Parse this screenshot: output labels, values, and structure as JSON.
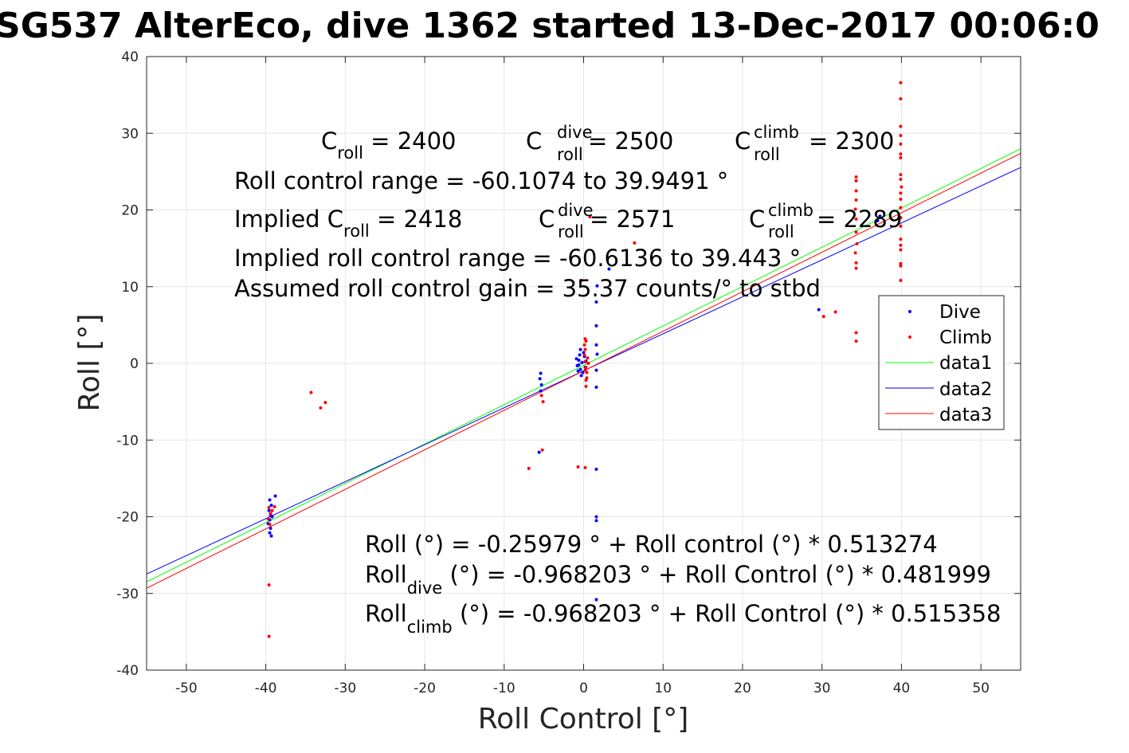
{
  "chart_data": {
    "type": "scatter",
    "title": "SG537 AlterEco, dive 1362 started 13-Dec-2017 00:06:0",
    "xlabel": "Roll Control [°]",
    "ylabel": "Roll [°]",
    "xlim": [
      -55,
      55
    ],
    "ylim": [
      -40,
      40
    ],
    "xticks": [
      -50,
      -40,
      -30,
      -20,
      -10,
      0,
      10,
      20,
      30,
      40,
      50
    ],
    "yticks": [
      -40,
      -30,
      -20,
      -10,
      0,
      10,
      20,
      30,
      40
    ],
    "xtick_labels": [
      "-50",
      "-40",
      "-30",
      "-20",
      "-10",
      "0",
      "10",
      "20",
      "30",
      "40",
      "50"
    ],
    "ytick_labels": [
      "-40",
      "-30",
      "-20",
      "-10",
      "0",
      "10",
      "20",
      "30",
      "40"
    ],
    "grid": true,
    "legend_position": "right",
    "series": [
      {
        "name": "Dive",
        "kind": "points",
        "color": "#0000ff",
        "points": [
          [
            -39.5,
            -17.8
          ],
          [
            -39.3,
            -18.5
          ],
          [
            -39.6,
            -19.2
          ],
          [
            -39.4,
            -19.8
          ],
          [
            -39.5,
            -20.4
          ],
          [
            -39.7,
            -20.9
          ],
          [
            -39.4,
            -21.5
          ],
          [
            -39.5,
            -22.1
          ],
          [
            -39.3,
            -22.5
          ],
          [
            -38.8,
            -17.3
          ],
          [
            -39.2,
            -20.0
          ],
          [
            -5.4,
            -1.3
          ],
          [
            -5.5,
            -2.0
          ],
          [
            -5.3,
            -2.8
          ],
          [
            -5.4,
            -3.6
          ],
          [
            -5.6,
            -11.6
          ],
          [
            -0.8,
            -0.3
          ],
          [
            -0.6,
            0.4
          ],
          [
            -0.5,
            1.1
          ],
          [
            -0.4,
            1.8
          ],
          [
            -0.7,
            -1.0
          ],
          [
            -0.3,
            -1.6
          ],
          [
            -0.2,
            0.1
          ],
          [
            0.1,
            0.9
          ],
          [
            0.2,
            -0.5
          ],
          [
            -0.9,
            0.6
          ],
          [
            -0.1,
            -1.2
          ],
          [
            0.3,
            0.3
          ],
          [
            -0.4,
            -0.8
          ],
          [
            0.0,
            1.4
          ],
          [
            -0.6,
            -0.2
          ],
          [
            1.6,
            4.9
          ],
          [
            1.6,
            2.4
          ],
          [
            1.7,
            1.2
          ],
          [
            1.6,
            -0.9
          ],
          [
            1.6,
            -3.1
          ],
          [
            1.6,
            8.0
          ],
          [
            1.7,
            10.1
          ],
          [
            1.6,
            -13.8
          ],
          [
            1.6,
            -20.0
          ],
          [
            1.6,
            -20.5
          ],
          [
            1.6,
            -30.8
          ],
          [
            3.2,
            12.3
          ],
          [
            29.6,
            7.0
          ],
          [
            37.3,
            19.2
          ],
          [
            37.0,
            18.6
          ]
        ]
      },
      {
        "name": "Climb",
        "kind": "points",
        "color": "#ff0000",
        "points": [
          [
            -39.6,
            -18.8
          ],
          [
            -39.4,
            -19.6
          ],
          [
            -39.7,
            -20.3
          ],
          [
            -39.2,
            -19.2
          ],
          [
            -38.9,
            -18.7
          ],
          [
            -39.5,
            -21.0
          ],
          [
            -39.6,
            -28.9
          ],
          [
            -39.6,
            -35.6
          ],
          [
            -34.3,
            -3.8
          ],
          [
            -33.1,
            -5.8
          ],
          [
            -32.5,
            -5.1
          ],
          [
            -6.9,
            -13.7
          ],
          [
            -5.3,
            -4.2
          ],
          [
            -5.1,
            -5.0
          ],
          [
            -5.2,
            -11.3
          ],
          [
            -0.7,
            -13.5
          ],
          [
            0.2,
            -13.6
          ],
          [
            -0.3,
            10.8
          ],
          [
            0.2,
            0.2
          ],
          [
            0.3,
            -0.5
          ],
          [
            0.1,
            1.1
          ],
          [
            0.4,
            -1.2
          ],
          [
            0.2,
            1.8
          ],
          [
            0.3,
            -2.2
          ],
          [
            0.1,
            2.4
          ],
          [
            0.2,
            3.2
          ],
          [
            0.3,
            -3.0
          ],
          [
            0.5,
            0.7
          ],
          [
            0.4,
            -1.9
          ],
          [
            0.6,
            0.0
          ],
          [
            0.2,
            -0.9
          ],
          [
            0.3,
            2.9
          ],
          [
            0.8,
            19.1
          ],
          [
            6.4,
            15.7
          ],
          [
            30.2,
            6.1
          ],
          [
            31.7,
            6.7
          ],
          [
            34.3,
            24.3
          ],
          [
            34.3,
            23.8
          ],
          [
            34.3,
            22.5
          ],
          [
            34.3,
            21.3
          ],
          [
            34.2,
            20.1
          ],
          [
            34.3,
            18.8
          ],
          [
            34.3,
            17.1
          ],
          [
            34.4,
            15.6
          ],
          [
            34.2,
            14.4
          ],
          [
            34.3,
            13.1
          ],
          [
            34.3,
            12.4
          ],
          [
            34.3,
            4.0
          ],
          [
            34.3,
            2.9
          ],
          [
            39.9,
            36.6
          ],
          [
            39.9,
            34.5
          ],
          [
            39.9,
            30.9
          ],
          [
            39.9,
            29.7
          ],
          [
            39.9,
            28.6
          ],
          [
            39.9,
            27.3
          ],
          [
            39.9,
            26.8
          ],
          [
            39.9,
            24.6
          ],
          [
            39.9,
            24.0
          ],
          [
            40.0,
            23.0
          ],
          [
            39.9,
            22.2
          ],
          [
            39.9,
            21.4
          ],
          [
            39.9,
            20.3
          ],
          [
            39.9,
            19.0
          ],
          [
            39.9,
            17.9
          ],
          [
            39.9,
            16.2
          ],
          [
            39.9,
            15.4
          ],
          [
            39.9,
            14.8
          ],
          [
            39.9,
            13.0
          ],
          [
            39.9,
            12.7
          ],
          [
            39.9,
            10.8
          ]
        ]
      },
      {
        "name": "data1",
        "kind": "line",
        "color": "#00ff00",
        "intercept": -0.25979,
        "slope": 0.513274
      },
      {
        "name": "data2",
        "kind": "line",
        "color": "#0000ff",
        "intercept": -0.968203,
        "slope": 0.481999
      },
      {
        "name": "data3",
        "kind": "line",
        "color": "#ff0000",
        "intercept": -0.968203,
        "slope": 0.515358
      }
    ],
    "annotations": {
      "c_roll": {
        "main": "C",
        "sub": "roll",
        "rest": " = 2400"
      },
      "c_roll_dive": {
        "main": "C",
        "sup": "dive",
        "sub": "roll",
        "rest": " = 2500"
      },
      "c_roll_climb": {
        "main": "C",
        "sup": "climb",
        "sub": "roll",
        "rest": " = 2300"
      },
      "range": "Roll control range = -60.1074 to 39.9491 °",
      "implied_c": {
        "main": "Implied C",
        "sub": "roll",
        "rest": " = 2418"
      },
      "implied_dive": {
        "main": "C",
        "sup": "dive",
        "sub": "roll",
        "rest": " = 2571"
      },
      "implied_climb": {
        "main": "C",
        "sup": "climb",
        "sub": "roll",
        "rest": " = 2289"
      },
      "implied_range": "Implied roll control range = -60.6136 to 39.443 °",
      "gain": "Assumed roll control gain = 35.37 counts/° to stbd",
      "fit_all": "Roll (°) = -0.25979 ° + Roll control (°) * 0.513274",
      "fit_dive": {
        "main": "Roll",
        "sub": "dive",
        "rest": " (°) = -0.968203 ° + Roll Control (°) * 0.481999"
      },
      "fit_climb": {
        "main": "Roll",
        "sub": "climb",
        "rest": " (°) = -0.968203 ° + Roll Control (°) * 0.515358"
      }
    }
  }
}
